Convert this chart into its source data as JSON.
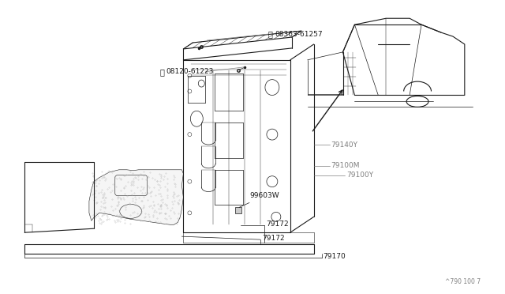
{
  "background_color": "#ffffff",
  "line_color": "#1a1a1a",
  "gray_color": "#808080",
  "fig_width": 6.4,
  "fig_height": 3.72,
  "dpi": 100,
  "watermark": "^790 100 7",
  "label_screw": "08363-61257",
  "label_bolt": "08120-61223",
  "label_79140Y": "79140Y",
  "label_79100M": "79100M",
  "label_79100Y": "79100Y",
  "label_99603W": "99603W",
  "label_79172a": "79172",
  "label_79172b": "79172",
  "label_79170": "79170"
}
